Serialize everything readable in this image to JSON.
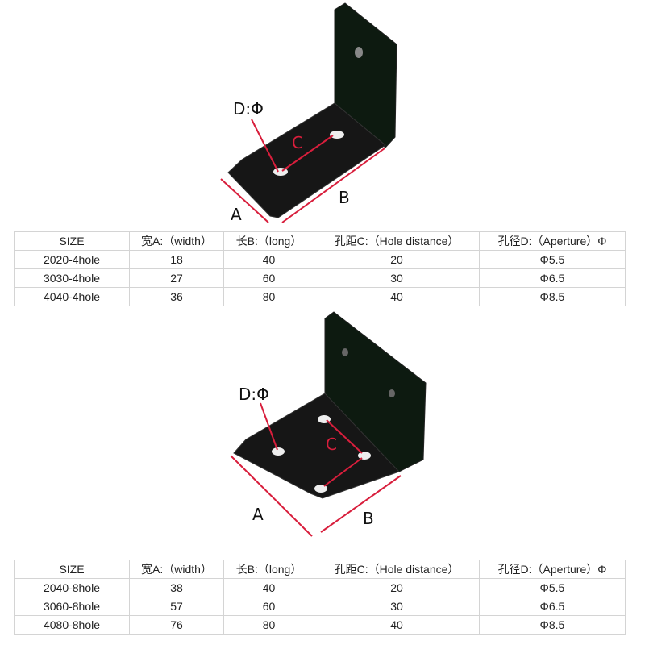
{
  "figure1": {
    "label_d": "D:Φ",
    "label_c": "C",
    "label_a": "A",
    "label_b": "B"
  },
  "figure2": {
    "label_d": "D:Φ",
    "label_c": "C",
    "label_a": "A",
    "label_b": "B"
  },
  "colors": {
    "dimension_line": "#d81e3c",
    "bracket": "#141414"
  },
  "table1": {
    "headers": [
      "SIZE",
      "宽A:（width）",
      "长B:（long）",
      "孔距C:（Hole distance）",
      "孔径D:（Aperture）Φ"
    ],
    "rows": [
      [
        "2020-4hole",
        "18",
        "40",
        "20",
        "Φ5.5"
      ],
      [
        "3030-4hole",
        "27",
        "60",
        "30",
        "Φ6.5"
      ],
      [
        "4040-4hole",
        "36",
        "80",
        "40",
        "Φ8.5"
      ]
    ]
  },
  "table2": {
    "headers": [
      "SIZE",
      "宽A:（width）",
      "长B:（long）",
      "孔距C:（Hole distance）",
      "孔径D:（Aperture）Φ"
    ],
    "rows": [
      [
        "2040-8hole",
        "38",
        "40",
        "20",
        "Φ5.5"
      ],
      [
        "3060-8hole",
        "57",
        "60",
        "30",
        "Φ6.5"
      ],
      [
        "4080-8hole",
        "76",
        "80",
        "40",
        "Φ8.5"
      ]
    ]
  }
}
